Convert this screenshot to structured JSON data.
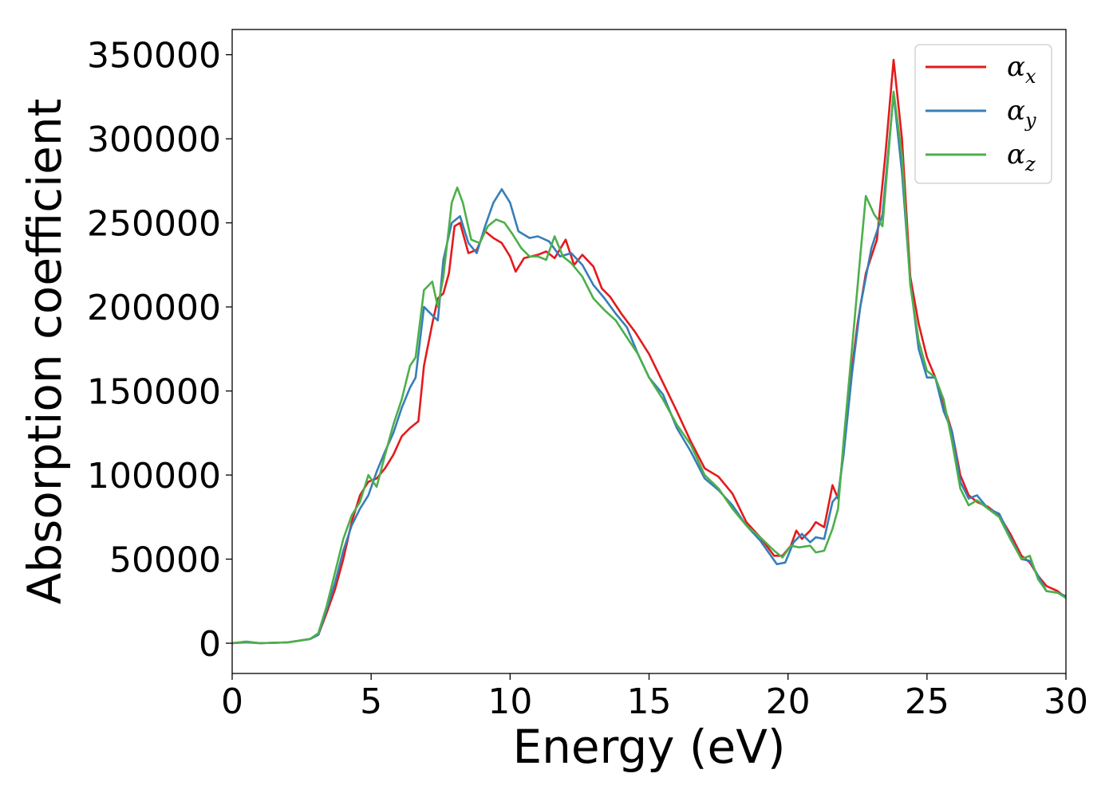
{
  "chart_data": {
    "type": "line",
    "title": "",
    "xlabel": "Energy (eV)",
    "ylabel": "Absorption coefficient",
    "xlim": [
      0,
      30
    ],
    "ylim": [
      -18000,
      365000
    ],
    "x_ticks": [
      0,
      5,
      10,
      15,
      20,
      25,
      30
    ],
    "y_ticks": [
      0,
      50000,
      100000,
      150000,
      200000,
      250000,
      300000,
      350000
    ],
    "grid": false,
    "legend": {
      "position": "top-right",
      "entries": [
        {
          "symbol": "α",
          "subscript": "x",
          "color": "#e41a1c"
        },
        {
          "symbol": "α",
          "subscript": "y",
          "color": "#377eb8"
        },
        {
          "symbol": "α",
          "subscript": "z",
          "color": "#4daf4a"
        }
      ]
    },
    "series": [
      {
        "color": "#e41a1c",
        "points": [
          [
            0,
            0
          ],
          [
            0.5,
            800
          ],
          [
            1,
            0
          ],
          [
            2,
            500
          ],
          [
            2.8,
            2500
          ],
          [
            3.1,
            5000
          ],
          [
            3.4,
            18000
          ],
          [
            3.7,
            32000
          ],
          [
            4,
            50000
          ],
          [
            4.3,
            72000
          ],
          [
            4.6,
            88000
          ],
          [
            4.9,
            96000
          ],
          [
            5.2,
            98000
          ],
          [
            5.5,
            104000
          ],
          [
            5.8,
            112000
          ],
          [
            6.1,
            123000
          ],
          [
            6.4,
            128000
          ],
          [
            6.7,
            132000
          ],
          [
            6.9,
            165000
          ],
          [
            7.2,
            190000
          ],
          [
            7.4,
            205000
          ],
          [
            7.6,
            208000
          ],
          [
            7.8,
            220000
          ],
          [
            8,
            248000
          ],
          [
            8.2,
            250000
          ],
          [
            8.5,
            232000
          ],
          [
            8.8,
            234000
          ],
          [
            9.1,
            245000
          ],
          [
            9.4,
            241000
          ],
          [
            9.7,
            238000
          ],
          [
            10,
            230000
          ],
          [
            10.2,
            221000
          ],
          [
            10.5,
            229000
          ],
          [
            11,
            231000
          ],
          [
            11.3,
            233000
          ],
          [
            11.6,
            229000
          ],
          [
            12,
            240000
          ],
          [
            12.3,
            225000
          ],
          [
            12.6,
            231000
          ],
          [
            13,
            224000
          ],
          [
            13.3,
            211000
          ],
          [
            13.6,
            206000
          ],
          [
            14,
            196000
          ],
          [
            14.5,
            185000
          ],
          [
            15,
            172000
          ],
          [
            15.5,
            155000
          ],
          [
            16,
            138000
          ],
          [
            16.5,
            120000
          ],
          [
            17,
            104000
          ],
          [
            17.5,
            99000
          ],
          [
            18,
            89000
          ],
          [
            18.5,
            72000
          ],
          [
            19,
            63000
          ],
          [
            19.5,
            52000
          ],
          [
            19.8,
            52000
          ],
          [
            20.1,
            58000
          ],
          [
            20.3,
            67000
          ],
          [
            20.5,
            62000
          ],
          [
            20.8,
            67000
          ],
          [
            21,
            72000
          ],
          [
            21.3,
            69000
          ],
          [
            21.6,
            94000
          ],
          [
            21.8,
            86000
          ],
          [
            22,
            115000
          ],
          [
            22.2,
            150000
          ],
          [
            22.5,
            190000
          ],
          [
            22.8,
            220000
          ],
          [
            23.2,
            240000
          ],
          [
            23.5,
            290000
          ],
          [
            23.8,
            347000
          ],
          [
            24.1,
            300000
          ],
          [
            24.4,
            218000
          ],
          [
            24.7,
            190000
          ],
          [
            25,
            170000
          ],
          [
            25.3,
            158000
          ],
          [
            25.6,
            142000
          ],
          [
            25.9,
            126000
          ],
          [
            26.2,
            100000
          ],
          [
            26.5,
            88000
          ],
          [
            26.8,
            84000
          ],
          [
            27.2,
            81000
          ],
          [
            27.6,
            76000
          ],
          [
            28,
            65000
          ],
          [
            28.4,
            52000
          ],
          [
            28.7,
            48000
          ],
          [
            29,
            40000
          ],
          [
            29.3,
            34000
          ],
          [
            29.7,
            31000
          ],
          [
            30,
            27000
          ]
        ]
      },
      {
        "color": "#377eb8",
        "points": [
          [
            0,
            0
          ],
          [
            0.5,
            500
          ],
          [
            1,
            0
          ],
          [
            2,
            500
          ],
          [
            2.8,
            2500
          ],
          [
            3.1,
            5000
          ],
          [
            3.4,
            20000
          ],
          [
            3.7,
            36000
          ],
          [
            4,
            55000
          ],
          [
            4.3,
            70000
          ],
          [
            4.6,
            80000
          ],
          [
            4.9,
            88000
          ],
          [
            5.2,
            102000
          ],
          [
            5.5,
            114000
          ],
          [
            5.8,
            125000
          ],
          [
            6.1,
            140000
          ],
          [
            6.4,
            152000
          ],
          [
            6.6,
            158000
          ],
          [
            6.9,
            200000
          ],
          [
            7.2,
            195000
          ],
          [
            7.4,
            192000
          ],
          [
            7.6,
            228000
          ],
          [
            7.9,
            250000
          ],
          [
            8.2,
            254000
          ],
          [
            8.5,
            238000
          ],
          [
            8.8,
            232000
          ],
          [
            9.1,
            248000
          ],
          [
            9.4,
            262000
          ],
          [
            9.7,
            270000
          ],
          [
            10,
            262000
          ],
          [
            10.3,
            245000
          ],
          [
            10.7,
            241000
          ],
          [
            11,
            242000
          ],
          [
            11.4,
            239000
          ],
          [
            11.8,
            230000
          ],
          [
            12.2,
            232000
          ],
          [
            12.6,
            225000
          ],
          [
            13,
            213000
          ],
          [
            13.4,
            205000
          ],
          [
            13.8,
            196000
          ],
          [
            14.2,
            188000
          ],
          [
            14.6,
            172000
          ],
          [
            15,
            158000
          ],
          [
            15.5,
            148000
          ],
          [
            16,
            128000
          ],
          [
            16.5,
            114000
          ],
          [
            17,
            98000
          ],
          [
            17.5,
            91000
          ],
          [
            18,
            82000
          ],
          [
            18.5,
            70000
          ],
          [
            19,
            61000
          ],
          [
            19.3,
            54000
          ],
          [
            19.6,
            47000
          ],
          [
            19.9,
            48000
          ],
          [
            20.2,
            60000
          ],
          [
            20.5,
            65000
          ],
          [
            20.8,
            60000
          ],
          [
            21,
            63000
          ],
          [
            21.3,
            62000
          ],
          [
            21.6,
            84000
          ],
          [
            21.8,
            88000
          ],
          [
            22,
            112000
          ],
          [
            22.3,
            160000
          ],
          [
            22.6,
            200000
          ],
          [
            23,
            235000
          ],
          [
            23.4,
            255000
          ],
          [
            23.8,
            327000
          ],
          [
            24.1,
            280000
          ],
          [
            24.4,
            215000
          ],
          [
            24.7,
            175000
          ],
          [
            25,
            158000
          ],
          [
            25.3,
            158000
          ],
          [
            25.6,
            138000
          ],
          [
            25.9,
            126000
          ],
          [
            26.2,
            96000
          ],
          [
            26.5,
            86000
          ],
          [
            26.8,
            88000
          ],
          [
            27.2,
            80000
          ],
          [
            27.6,
            77000
          ],
          [
            28,
            63000
          ],
          [
            28.4,
            50000
          ],
          [
            28.7,
            49000
          ],
          [
            29,
            40000
          ],
          [
            29.3,
            31000
          ],
          [
            29.7,
            30000
          ],
          [
            30,
            28000
          ]
        ]
      },
      {
        "color": "#4daf4a",
        "points": [
          [
            0,
            0
          ],
          [
            0.5,
            1000
          ],
          [
            1,
            0
          ],
          [
            2,
            500
          ],
          [
            2.8,
            2500
          ],
          [
            3.1,
            6000
          ],
          [
            3.4,
            22000
          ],
          [
            3.7,
            42000
          ],
          [
            4,
            62000
          ],
          [
            4.3,
            76000
          ],
          [
            4.6,
            84000
          ],
          [
            4.9,
            100000
          ],
          [
            5.2,
            93000
          ],
          [
            5.5,
            112000
          ],
          [
            5.8,
            130000
          ],
          [
            6.1,
            145000
          ],
          [
            6.4,
            165000
          ],
          [
            6.6,
            170000
          ],
          [
            6.9,
            210000
          ],
          [
            7.2,
            215000
          ],
          [
            7.4,
            200000
          ],
          [
            7.6,
            218000
          ],
          [
            7.9,
            262000
          ],
          [
            8.1,
            271000
          ],
          [
            8.3,
            262000
          ],
          [
            8.6,
            240000
          ],
          [
            8.9,
            238000
          ],
          [
            9.2,
            248000
          ],
          [
            9.5,
            252000
          ],
          [
            9.8,
            250000
          ],
          [
            10.1,
            243000
          ],
          [
            10.4,
            235000
          ],
          [
            10.7,
            230000
          ],
          [
            11,
            230000
          ],
          [
            11.3,
            228000
          ],
          [
            11.6,
            242000
          ],
          [
            11.9,
            230000
          ],
          [
            12.2,
            226000
          ],
          [
            12.6,
            218000
          ],
          [
            13,
            205000
          ],
          [
            13.4,
            198000
          ],
          [
            13.8,
            192000
          ],
          [
            14.2,
            182000
          ],
          [
            14.6,
            172000
          ],
          [
            15,
            158000
          ],
          [
            15.5,
            145000
          ],
          [
            16,
            130000
          ],
          [
            16.5,
            118000
          ],
          [
            17,
            100000
          ],
          [
            17.5,
            92000
          ],
          [
            18,
            80000
          ],
          [
            18.5,
            70000
          ],
          [
            19,
            63000
          ],
          [
            19.5,
            55000
          ],
          [
            19.8,
            51000
          ],
          [
            20.1,
            58000
          ],
          [
            20.4,
            57000
          ],
          [
            20.8,
            58000
          ],
          [
            21,
            54000
          ],
          [
            21.3,
            55000
          ],
          [
            21.6,
            68000
          ],
          [
            21.8,
            80000
          ],
          [
            22,
            120000
          ],
          [
            22.3,
            175000
          ],
          [
            22.6,
            230000
          ],
          [
            22.8,
            266000
          ],
          [
            23.1,
            255000
          ],
          [
            23.4,
            248000
          ],
          [
            23.8,
            328000
          ],
          [
            24.1,
            290000
          ],
          [
            24.4,
            213000
          ],
          [
            24.7,
            180000
          ],
          [
            25,
            162000
          ],
          [
            25.3,
            158000
          ],
          [
            25.6,
            145000
          ],
          [
            25.9,
            120000
          ],
          [
            26.2,
            92000
          ],
          [
            26.5,
            82000
          ],
          [
            26.8,
            85000
          ],
          [
            27.2,
            80000
          ],
          [
            27.6,
            75000
          ],
          [
            28,
            62000
          ],
          [
            28.4,
            50000
          ],
          [
            28.7,
            52000
          ],
          [
            29,
            38000
          ],
          [
            29.3,
            31000
          ],
          [
            29.7,
            30000
          ],
          [
            30,
            27000
          ]
        ]
      }
    ]
  }
}
